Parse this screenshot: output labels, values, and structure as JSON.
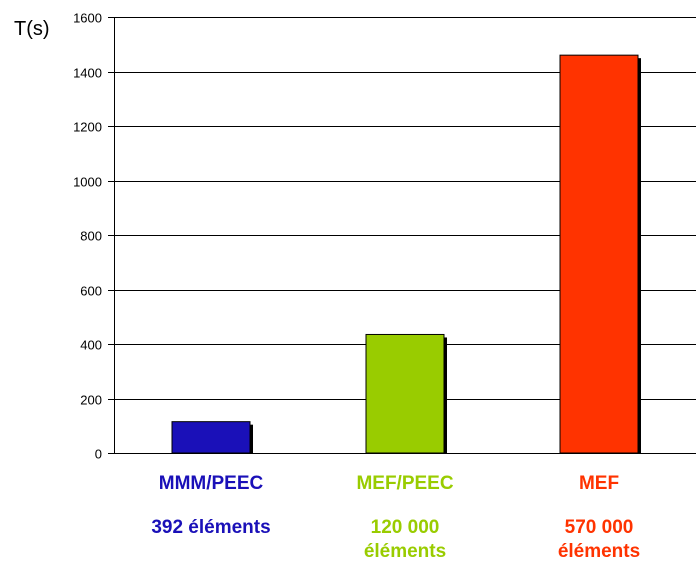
{
  "chart_data": {
    "type": "bar",
    "ylabel": "T(s)",
    "xlabel": "",
    "title": "",
    "ylim": [
      0,
      1600
    ],
    "y_ticks": [
      0,
      200,
      400,
      600,
      800,
      1000,
      1200,
      1400,
      1600
    ],
    "grid": true,
    "categories": [
      "MMM/PEEC",
      "MEF/PEEC",
      "MEF"
    ],
    "sublabels": [
      "392 éléments",
      "120 000 éléments",
      "570 000 éléments"
    ],
    "values": [
      115,
      435,
      1460
    ],
    "colors": [
      "#1a10b8",
      "#99cc00",
      "#ff3300"
    ]
  }
}
